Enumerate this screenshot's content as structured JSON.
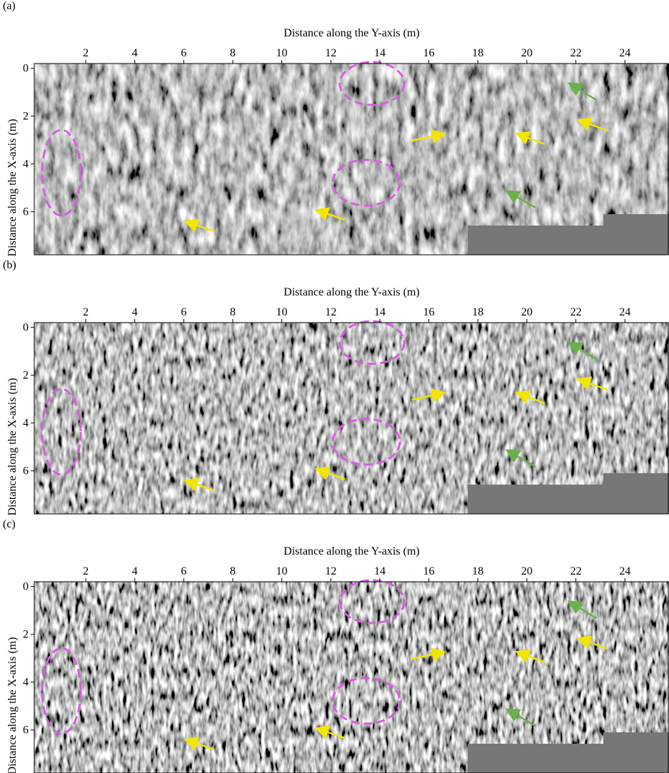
{
  "chart_data": [
    {
      "type": "image",
      "panel_label": "(a)",
      "xlabel": "Distance along the Y-axis (m)",
      "ylabel": "Distance along the X-axis (m)",
      "xlim": [
        -0.1,
        25.8
      ],
      "ylim": [
        -0.2,
        7.8
      ],
      "xticks": [
        2,
        4,
        6,
        8,
        10,
        12,
        14,
        16,
        18,
        20,
        22,
        24
      ],
      "yticks": [
        0,
        2,
        4,
        6
      ]
    },
    {
      "type": "image",
      "panel_label": "(b)",
      "xlabel": "Distance along the Y-axis (m)",
      "ylabel": "Distance along the X-axis (m)",
      "xlim": [
        -0.1,
        25.8
      ],
      "ylim": [
        -0.2,
        7.8
      ],
      "xticks": [
        2,
        4,
        6,
        8,
        10,
        12,
        14,
        16,
        18,
        20,
        22,
        24
      ],
      "yticks": [
        0,
        2,
        4,
        6
      ]
    },
    {
      "type": "image",
      "panel_label": "(c)",
      "xlabel": "Distance along the Y-axis (m)",
      "ylabel": "Distance along the X-axis (m)",
      "xlim": [
        -0.1,
        25.8
      ],
      "ylim": [
        -0.2,
        7.8
      ],
      "xticks": [
        2,
        4,
        6,
        8,
        10,
        12,
        14,
        16,
        18,
        20,
        22,
        24
      ],
      "yticks": [
        0,
        2,
        4,
        6
      ]
    }
  ]
}
